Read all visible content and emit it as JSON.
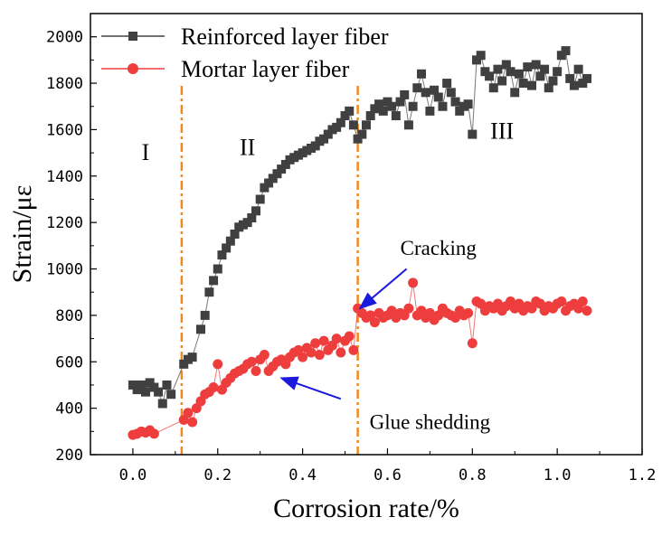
{
  "chart_data": {
    "type": "scatter",
    "xlabel": "Corrosion rate/%",
    "ylabel": "Strain/με",
    "xlim": [
      -0.1,
      1.2
    ],
    "ylim": [
      200,
      2100
    ],
    "xticks": [
      0.0,
      0.2,
      0.4,
      0.6,
      0.8,
      1.0,
      1.2
    ],
    "xtick_labels": [
      "0.0",
      "0.2",
      "0.4",
      "0.6",
      "0.8",
      "1.0",
      "1.2"
    ],
    "yticks": [
      200,
      400,
      600,
      800,
      1000,
      1200,
      1400,
      1600,
      1800,
      2000
    ],
    "ytick_labels": [
      "200",
      "400",
      "600",
      "800",
      "1000",
      "1200",
      "1400",
      "1600",
      "1800",
      "2000"
    ],
    "legend": {
      "position": "top-left",
      "entries": [
        {
          "name": "Reinforced layer fiber",
          "marker": "square",
          "color": "#404040"
        },
        {
          "name": "Mortar layer fiber",
          "marker": "circle",
          "color": "#ee3d3d"
        }
      ]
    },
    "vlines": [
      {
        "x": 0.115,
        "color": "#f08a1c",
        "style": "dash-dot"
      },
      {
        "x": 0.53,
        "color": "#f08a1c",
        "style": "dash-dot"
      }
    ],
    "regions": [
      {
        "label": "I",
        "x": 0.03,
        "y": 1470
      },
      {
        "label": "II",
        "x": 0.27,
        "y": 1490
      },
      {
        "label": "III",
        "x": 0.87,
        "y": 1560
      }
    ],
    "annotations": [
      {
        "text": "Cracking",
        "text_x": 0.72,
        "text_y": 1060,
        "arrow_from": [
          0.645,
          1000
        ],
        "arrow_to": [
          0.535,
          830
        ],
        "color": "#1a1adc"
      },
      {
        "text": "Glue shedding",
        "text_x": 0.7,
        "text_y": 310,
        "arrow_from": [
          0.49,
          440
        ],
        "arrow_to": [
          0.35,
          530
        ],
        "color": "#1a1adc"
      }
    ],
    "series": [
      {
        "name": "Reinforced layer fiber",
        "marker": "square",
        "color": "#404040",
        "x": [
          0.0,
          0.01,
          0.02,
          0.03,
          0.04,
          0.05,
          0.06,
          0.07,
          0.08,
          0.09,
          0.12,
          0.13,
          0.14,
          0.16,
          0.17,
          0.18,
          0.19,
          0.2,
          0.21,
          0.22,
          0.23,
          0.24,
          0.25,
          0.26,
          0.27,
          0.28,
          0.29,
          0.3,
          0.31,
          0.32,
          0.33,
          0.34,
          0.35,
          0.36,
          0.37,
          0.38,
          0.39,
          0.4,
          0.41,
          0.42,
          0.43,
          0.44,
          0.45,
          0.46,
          0.47,
          0.48,
          0.49,
          0.5,
          0.51,
          0.52,
          0.53,
          0.54,
          0.55,
          0.56,
          0.57,
          0.58,
          0.59,
          0.6,
          0.61,
          0.62,
          0.63,
          0.64,
          0.65,
          0.66,
          0.67,
          0.68,
          0.69,
          0.7,
          0.71,
          0.72,
          0.73,
          0.74,
          0.75,
          0.76,
          0.77,
          0.78,
          0.79,
          0.8,
          0.81,
          0.82,
          0.83,
          0.84,
          0.85,
          0.86,
          0.87,
          0.88,
          0.89,
          0.9,
          0.91,
          0.92,
          0.93,
          0.94,
          0.95,
          0.96,
          0.97,
          0.98,
          0.99,
          1.0,
          1.01,
          1.02,
          1.03,
          1.04,
          1.05,
          1.06,
          1.07
        ],
        "y": [
          500,
          480,
          500,
          470,
          510,
          490,
          470,
          420,
          500,
          460,
          590,
          610,
          620,
          740,
          800,
          900,
          950,
          1000,
          1060,
          1090,
          1120,
          1150,
          1180,
          1190,
          1200,
          1220,
          1250,
          1300,
          1350,
          1370,
          1390,
          1410,
          1430,
          1450,
          1470,
          1480,
          1490,
          1500,
          1510,
          1520,
          1530,
          1550,
          1560,
          1580,
          1600,
          1610,
          1630,
          1660,
          1680,
          1620,
          1560,
          1580,
          1620,
          1660,
          1690,
          1710,
          1680,
          1720,
          1700,
          1660,
          1720,
          1750,
          1620,
          1700,
          1780,
          1840,
          1760,
          1680,
          1770,
          1740,
          1700,
          1800,
          1760,
          1720,
          1680,
          1700,
          1710,
          1580,
          1900,
          1920,
          1850,
          1830,
          1780,
          1860,
          1810,
          1880,
          1850,
          1760,
          1840,
          1800,
          1870,
          1790,
          1880,
          1830,
          1860,
          1780,
          1810,
          1850,
          1920,
          1940,
          1820,
          1790,
          1860,
          1800,
          1820
        ]
      },
      {
        "name": "Mortar layer fiber",
        "marker": "circle",
        "color": "#ee3d3d",
        "x": [
          0.0,
          0.01,
          0.02,
          0.03,
          0.04,
          0.05,
          0.12,
          0.13,
          0.14,
          0.15,
          0.16,
          0.17,
          0.18,
          0.19,
          0.2,
          0.21,
          0.22,
          0.23,
          0.24,
          0.25,
          0.26,
          0.27,
          0.28,
          0.29,
          0.3,
          0.31,
          0.32,
          0.33,
          0.34,
          0.35,
          0.36,
          0.37,
          0.38,
          0.39,
          0.4,
          0.41,
          0.42,
          0.43,
          0.44,
          0.45,
          0.46,
          0.47,
          0.48,
          0.49,
          0.5,
          0.51,
          0.52,
          0.53,
          0.54,
          0.55,
          0.56,
          0.57,
          0.58,
          0.59,
          0.6,
          0.61,
          0.62,
          0.63,
          0.64,
          0.65,
          0.66,
          0.67,
          0.68,
          0.69,
          0.7,
          0.71,
          0.72,
          0.73,
          0.74,
          0.75,
          0.76,
          0.77,
          0.78,
          0.79,
          0.8,
          0.81,
          0.82,
          0.83,
          0.84,
          0.85,
          0.86,
          0.87,
          0.88,
          0.89,
          0.9,
          0.91,
          0.92,
          0.93,
          0.94,
          0.95,
          0.96,
          0.97,
          0.98,
          0.99,
          1.0,
          1.01,
          1.02,
          1.03,
          1.04,
          1.05,
          1.06,
          1.07
        ],
        "y": [
          285,
          290,
          300,
          295,
          305,
          290,
          350,
          380,
          340,
          400,
          430,
          460,
          470,
          490,
          590,
          480,
          510,
          530,
          550,
          560,
          570,
          590,
          600,
          560,
          610,
          630,
          560,
          580,
          600,
          610,
          590,
          620,
          640,
          650,
          620,
          660,
          640,
          680,
          630,
          690,
          650,
          670,
          700,
          640,
          690,
          710,
          650,
          830,
          810,
          790,
          800,
          770,
          810,
          790,
          800,
          820,
          790,
          810,
          800,
          830,
          940,
          800,
          820,
          790,
          810,
          780,
          800,
          830,
          810,
          800,
          790,
          820,
          800,
          810,
          680,
          860,
          850,
          820,
          840,
          830,
          850,
          820,
          840,
          860,
          830,
          850,
          820,
          840,
          830,
          860,
          850,
          820,
          840,
          830,
          850,
          860,
          820,
          840,
          850,
          830,
          860,
          820
        ]
      }
    ]
  }
}
